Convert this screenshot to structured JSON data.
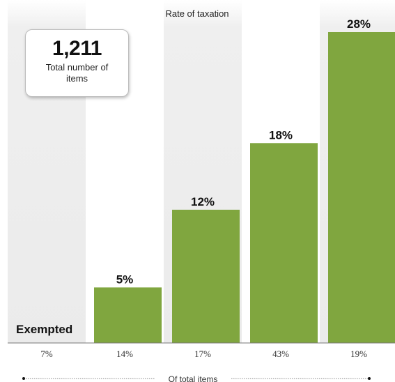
{
  "chart_data": {
    "type": "bar",
    "title": "Rate of taxation",
    "xlabel": "Of total items",
    "categories": [
      "Exempted",
      "5%",
      "12%",
      "18%",
      "28%"
    ],
    "series": [
      {
        "values": [
          0,
          5,
          12,
          18,
          28
        ]
      }
    ],
    "share_of_items": [
      "7%",
      "14%",
      "17%",
      "43%",
      "19%"
    ],
    "ylim": [
      0,
      28
    ],
    "grid": false,
    "colors": {
      "bar": "#80a63f",
      "band": "#efefef",
      "axis": "#777777"
    }
  },
  "summary_box": {
    "value": "1,211",
    "label": "Total number of items"
  }
}
